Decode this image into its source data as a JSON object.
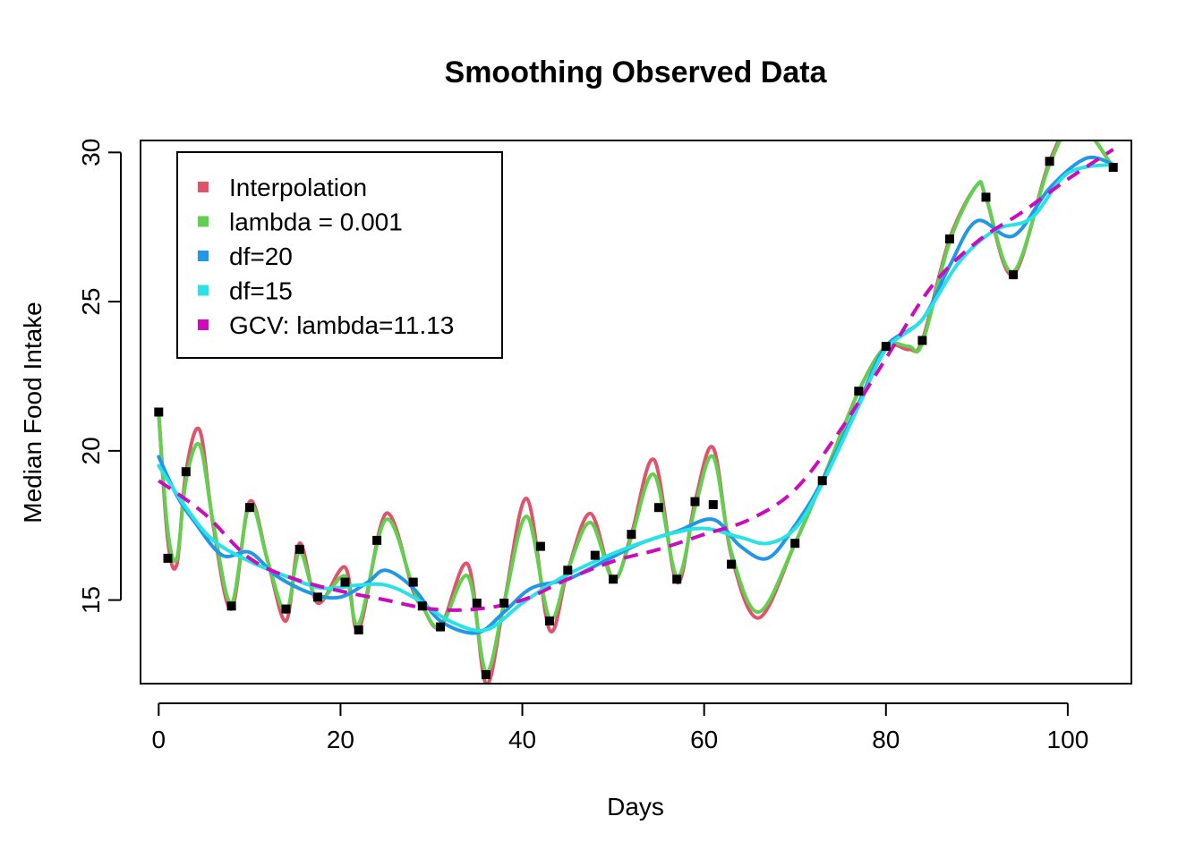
{
  "chart_data": {
    "type": "line",
    "title": "Smoothing Observed Data",
    "xlabel": "Days",
    "ylabel": "Median Food Intake",
    "xlim": [
      -2,
      107
    ],
    "ylim": [
      12.2,
      30.4
    ],
    "xticks": [
      0,
      20,
      40,
      60,
      80,
      100
    ],
    "yticks": [
      15,
      20,
      25,
      30
    ],
    "legend_position": "top-left",
    "observed_points": {
      "x": [
        0,
        1,
        3,
        8,
        10,
        14,
        15.5,
        17.5,
        20.5,
        22,
        24,
        28,
        29,
        31,
        35,
        36,
        38,
        42,
        43,
        45,
        48,
        50,
        52,
        55,
        57,
        59,
        61,
        63,
        70,
        73,
        77,
        80,
        84,
        87,
        91,
        94,
        98,
        105
      ],
      "y": [
        21.3,
        16.4,
        19.3,
        14.8,
        18.1,
        14.7,
        16.7,
        15.1,
        15.6,
        14,
        17,
        15.6,
        14.8,
        14.1,
        14.9,
        12.5,
        14.9,
        16.8,
        14.3,
        16,
        16.5,
        15.7,
        17.2,
        18.1,
        15.7,
        18.3,
        18.2,
        16.2,
        16.9,
        19,
        22,
        23.5,
        23.7,
        27.1,
        28.5,
        25.9,
        29.7,
        29.5
      ]
    },
    "series": [
      {
        "name": "Interpolation",
        "color": "#DF536B",
        "dash": "solid",
        "x": [
          0,
          1,
          2,
          3,
          4.5,
          6,
          8,
          10,
          12,
          14,
          15.5,
          17.5,
          20.5,
          22,
          25,
          28,
          29,
          31,
          34,
          36,
          38,
          40.5,
          43,
          45,
          47.5,
          50,
          52,
          54.5,
          57,
          59,
          61,
          63,
          66,
          70,
          73,
          77,
          80,
          82.5,
          84,
          87,
          90,
          91,
          94,
          98,
          101,
          105
        ],
        "y": [
          21.3,
          17,
          16.2,
          19.3,
          20.7,
          17.5,
          14.7,
          18.3,
          16.3,
          14.3,
          16.9,
          14.9,
          16.1,
          14,
          17.9,
          15.3,
          14.8,
          14.1,
          16.2,
          12.2,
          14.9,
          18.4,
          14,
          16,
          17.9,
          15.7,
          17.2,
          19.7,
          15.6,
          18.3,
          20.1,
          16.5,
          14.4,
          16.9,
          19,
          22,
          23.5,
          23.4,
          23.7,
          27.1,
          28.9,
          28.5,
          25.9,
          29.7,
          31,
          29.5
        ]
      },
      {
        "name": "lambda = 0.001",
        "color": "#61D04F",
        "dash": "solid",
        "x": [
          0,
          1,
          2,
          3,
          4.5,
          6,
          8,
          10,
          12,
          14,
          15.5,
          17.5,
          20.5,
          22,
          25,
          28,
          29,
          31,
          34,
          36,
          38,
          40.5,
          43,
          45,
          47.5,
          50,
          52,
          54.5,
          57,
          59,
          61,
          63,
          66,
          70,
          73,
          77,
          80,
          82.5,
          84,
          87,
          90,
          91,
          94,
          98,
          101,
          105
        ],
        "y": [
          21.2,
          17.3,
          16.4,
          19,
          20.2,
          17.6,
          14.9,
          18.2,
          16.3,
          14.6,
          16.6,
          15,
          15.8,
          14.2,
          17.7,
          15.4,
          14.8,
          14.1,
          15.8,
          12.6,
          14.9,
          17.8,
          14.4,
          16,
          17.6,
          15.7,
          17.1,
          19.2,
          15.8,
          18.1,
          19.8,
          16.6,
          14.6,
          16.9,
          19,
          22,
          23.5,
          23.5,
          23.6,
          27,
          28.9,
          28.5,
          26,
          29.6,
          31,
          29.5
        ]
      },
      {
        "name": "df=20",
        "color": "#2297E6",
        "dash": "solid",
        "x": [
          0,
          2,
          4,
          7,
          10,
          13,
          17,
          20,
          23,
          25,
          28,
          31,
          35,
          38,
          41,
          45,
          49,
          53,
          57,
          61,
          64,
          67,
          70,
          73,
          77,
          80,
          84,
          87,
          90,
          94,
          98,
          102,
          105
        ],
        "y": [
          19.8,
          18.5,
          17.6,
          16.5,
          16.6,
          15.8,
          15.2,
          15.1,
          15.6,
          16,
          15.4,
          14.3,
          13.9,
          14.6,
          15.4,
          15.7,
          16.3,
          16.9,
          17.3,
          17.7,
          16.8,
          16.4,
          17.5,
          19,
          21.6,
          23.5,
          24.4,
          26.2,
          27.7,
          27.2,
          28.8,
          29.8,
          29.6
        ]
      },
      {
        "name": "df=15",
        "color": "#28E2E5",
        "dash": "solid",
        "x": [
          0,
          3,
          6,
          10,
          14,
          18,
          22,
          25,
          28,
          32,
          36,
          40,
          44,
          48,
          52,
          56,
          60,
          64,
          67,
          70,
          73,
          77,
          80,
          84,
          88,
          92,
          96,
          100,
          105
        ],
        "y": [
          19.5,
          18.1,
          17,
          16.3,
          15.8,
          15.4,
          15.5,
          15.5,
          15.1,
          14.3,
          14,
          14.9,
          15.7,
          16.3,
          16.8,
          17.2,
          17.4,
          17.1,
          16.9,
          17.4,
          18.9,
          21.5,
          23.4,
          24.4,
          26.3,
          27.4,
          27.8,
          29.3,
          29.6
        ]
      },
      {
        "name": "GCV: lambda=11.13",
        "color": "#CD0BBC",
        "dash": "dashed",
        "x": [
          0,
          5,
          10,
          15,
          20,
          25,
          30,
          35,
          40,
          45,
          50,
          55,
          60,
          65,
          70,
          75,
          80,
          85,
          90,
          95,
          100,
          105
        ],
        "y": [
          19,
          17.9,
          16.4,
          15.7,
          15.3,
          15,
          14.7,
          14.7,
          15,
          15.7,
          16.3,
          16.7,
          17.2,
          17.7,
          18.7,
          20.7,
          23.1,
          25.5,
          27,
          28,
          29.1,
          30.1
        ]
      }
    ]
  }
}
